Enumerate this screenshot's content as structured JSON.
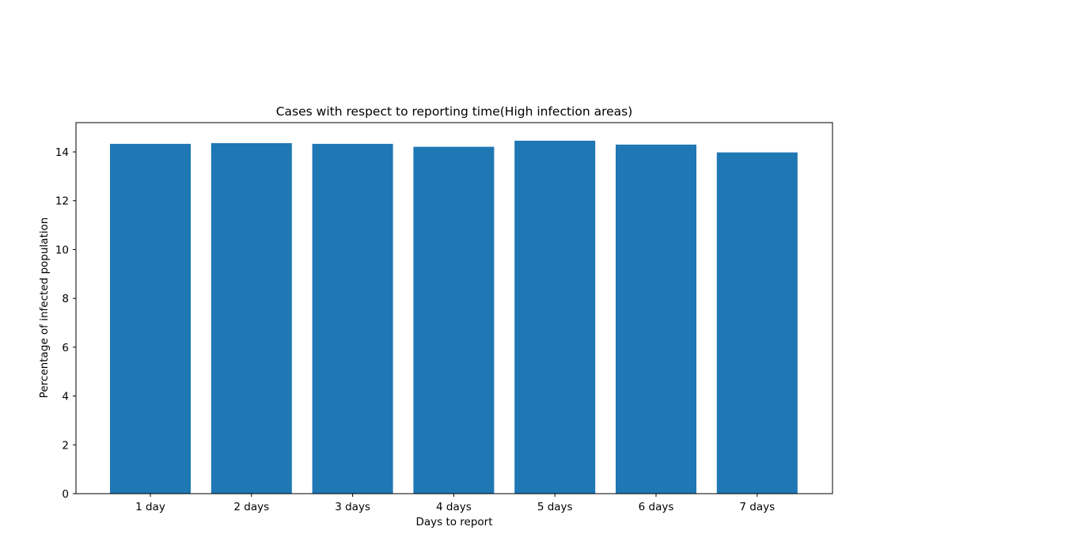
{
  "chart_data": {
    "type": "bar",
    "title": "Cases with respect to reporting time(High infection areas)",
    "xlabel": "Days to report",
    "ylabel": "Percentage of infected population",
    "categories": [
      "1 day",
      "2 days",
      "3 days",
      "4 days",
      "5 days",
      "6 days",
      "7 days"
    ],
    "values": [
      14.33,
      14.36,
      14.33,
      14.21,
      14.46,
      14.3,
      13.98
    ],
    "ylim": [
      0,
      15.2
    ],
    "yticks": [
      0,
      2,
      4,
      6,
      8,
      10,
      12,
      14
    ],
    "bar_color": "#1f77b4",
    "grid": false,
    "legend": "none"
  }
}
